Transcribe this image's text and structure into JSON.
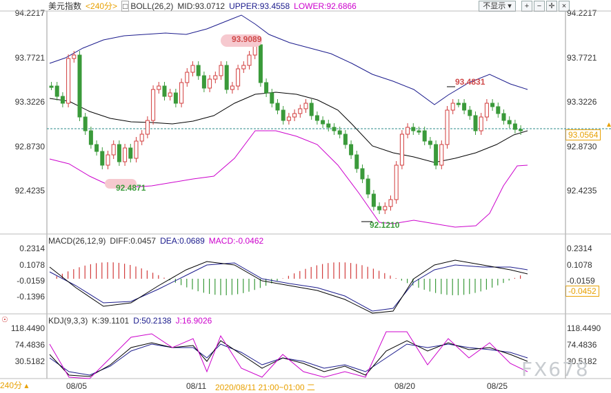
{
  "main_header": {
    "symbol": "美元指数",
    "period": "<240分>",
    "indicator_name": "BOLL(26,2)",
    "mid": "MID:93.0712",
    "upper": "UPPER:93.4558",
    "lower": "LOWER:92.6866"
  },
  "toolbar": {
    "hide_label": "不显示",
    "hide_options": [
      "不显示"
    ]
  },
  "main_y_labels": [
    "94.2217",
    "93.7721",
    "93.3226",
    "92.8730",
    "92.4235"
  ],
  "price_tag": "93.0564",
  "annotations": {
    "high": "93.9089",
    "low1": "92.4871",
    "low2": "92.1210",
    "high2": "93.4831"
  },
  "macd_header": {
    "name": "MACD(26,12,9)",
    "diff": "DIFF:0.0457",
    "dea": "DEA:0.0689",
    "macd": "MACD:-0.0462"
  },
  "macd_y_labels": [
    "0.2314",
    "0.1078",
    "-0.0159",
    "-0.1396"
  ],
  "macd_tag": "-0.0452",
  "kdj_header": {
    "name": "KDJ(9,3,3)",
    "k": "K:39.1101",
    "d": "D:50.2138",
    "j": "J:16.9026"
  },
  "kdj_y_labels": [
    "118.4490",
    "74.4836",
    "30.5182"
  ],
  "x_labels": [
    "08/05",
    "08/11",
    "08/20",
    "08/25"
  ],
  "crosshair_time": "2020/08/11 21:00~01:00 二",
  "period_tab": "240分",
  "watermark": "FX678",
  "colors": {
    "up": "#d23b3b",
    "down": "#3a9a3a",
    "boll_upper": "#1a1a8c",
    "boll_mid": "#000000",
    "boll_lower": "#cc00cc",
    "dea": "#1a1a8c",
    "diff": "#000000",
    "macd_label": "#cc00cc",
    "accent": "#e8a000"
  }
}
